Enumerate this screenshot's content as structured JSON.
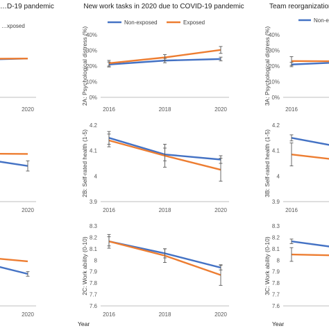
{
  "column_titles": [
    "…D-19 pandemic",
    "New work tasks in 2020 due to COVID-19 pandemic",
    "Team reorganization…"
  ],
  "year_label": "Year",
  "colors": {
    "non_exposed": "#4472c4",
    "exposed": "#ed7d31",
    "error_bar": "#595959",
    "axis": "#bfbfbf"
  },
  "chart_data": [
    {
      "id": "1A",
      "type": "line",
      "panel_label": "",
      "x": [
        2016,
        2018,
        2020
      ],
      "x_ticks_visible": [
        "2020"
      ],
      "series": [
        {
          "name": "Non-exposed",
          "values": [
            null,
            24.0,
            24.8
          ]
        },
        {
          "name": "Exposed",
          "values": [
            null,
            24.6,
            24.8
          ]
        }
      ],
      "legend_visible": [
        "…xposed"
      ]
    },
    {
      "id": "2A",
      "type": "line",
      "title": "New work tasks in 2020 due to COVID-19 pandemic",
      "ylabel": "2A: Psychological distress (%)",
      "ylim": [
        0,
        40
      ],
      "y_ticks": [
        "0%",
        "10%",
        "20%",
        "30%",
        "40%"
      ],
      "x": [
        2016,
        2018,
        2020
      ],
      "x_ticks": [
        "2016",
        "2018",
        "2020"
      ],
      "legend": [
        "Non-exposed",
        "Exposed"
      ],
      "legend_position": "top",
      "series": [
        {
          "name": "Non-exposed",
          "values": [
            21.0,
            23.5,
            24.5
          ],
          "err": [
            1.6,
            1.4,
            1.2
          ]
        },
        {
          "name": "Exposed",
          "values": [
            21.8,
            25.5,
            30.3
          ],
          "err": [
            1.8,
            1.8,
            2.2
          ]
        }
      ]
    },
    {
      "id": "3A",
      "type": "line",
      "title": "Team reorganization…",
      "ylabel": "3A: Psychological distress (%)",
      "ylim": [
        0,
        40
      ],
      "y_ticks": [
        "0%",
        "10%",
        "20%",
        "30%",
        "40%"
      ],
      "x": [
        2016,
        2018,
        2020
      ],
      "x_ticks_visible": [
        "2016"
      ],
      "legend_visible": [
        "Non-ex…"
      ],
      "series": [
        {
          "name": "Non-exposed",
          "values": [
            21.0,
            22.5,
            null
          ],
          "err": [
            1.4,
            null,
            null
          ]
        },
        {
          "name": "Exposed",
          "values": [
            23.2,
            23.0,
            null
          ],
          "err": [
            2.8,
            null,
            null
          ]
        }
      ]
    },
    {
      "id": "1B",
      "type": "line",
      "panel_label": "",
      "x": [
        2016,
        2018,
        2020
      ],
      "x_ticks_visible": [
        "2020"
      ],
      "series": [
        {
          "name": "Non-exposed",
          "values": [
            null,
            4.07,
            4.04
          ],
          "err": [
            null,
            null,
            0.02
          ]
        },
        {
          "name": "Exposed",
          "values": [
            null,
            4.088,
            4.087
          ]
        }
      ]
    },
    {
      "id": "2B",
      "type": "line",
      "ylabel": "2B: Self-rated health (1-5)",
      "ylim": [
        3.9,
        4.2
      ],
      "y_ticks": [
        "3.9",
        "4",
        "4.1",
        "4.2"
      ],
      "x": [
        2016,
        2018,
        2020
      ],
      "x_ticks": [
        "2016",
        "2018",
        "2020"
      ],
      "series": [
        {
          "name": "Non-exposed",
          "values": [
            4.15,
            4.085,
            4.065
          ],
          "err": [
            0.025,
            0.025,
            0.015
          ]
        },
        {
          "name": "Exposed",
          "values": [
            4.14,
            4.08,
            4.025
          ],
          "err": [
            0.025,
            0.045,
            0.045
          ]
        }
      ]
    },
    {
      "id": "3B",
      "type": "line",
      "ylabel": "3B: Self-rated health (1-5)",
      "ylim": [
        3.9,
        4.2
      ],
      "y_ticks": [
        "3.9",
        "4",
        "4.1",
        "4.2"
      ],
      "x": [
        2016,
        2018,
        2020
      ],
      "x_ticks_visible": [
        "2016"
      ],
      "series": [
        {
          "name": "Non-exposed",
          "values": [
            4.15,
            4.11,
            null
          ],
          "err": [
            0.012,
            null,
            null
          ]
        },
        {
          "name": "Exposed",
          "values": [
            4.085,
            4.06,
            null
          ],
          "err": [
            0.045,
            null,
            null
          ]
        }
      ]
    },
    {
      "id": "1C",
      "type": "line",
      "panel_label": "",
      "x": [
        2016,
        2018,
        2020
      ],
      "x_ticks_visible": [
        "2020"
      ],
      "series": [
        {
          "name": "Non-exposed",
          "values": [
            null,
            7.99,
            7.88
          ],
          "err": [
            null,
            null,
            0.02
          ]
        },
        {
          "name": "Exposed",
          "values": [
            null,
            8.03,
            7.99
          ]
        }
      ]
    },
    {
      "id": "2C",
      "type": "line",
      "ylabel": "2C: Work ability (0-10)",
      "ylim": [
        7.6,
        8.3
      ],
      "y_ticks": [
        "7.6",
        "7.7",
        "7.8",
        "7.9",
        "8",
        "8.1",
        "8.2",
        "8.3"
      ],
      "x": [
        2016,
        2018,
        2020
      ],
      "x_ticks": [
        "2016",
        "2018",
        "2020"
      ],
      "xlabel": "Year",
      "series": [
        {
          "name": "Non-exposed",
          "values": [
            8.165,
            8.06,
            7.935
          ],
          "err": [
            0.04,
            0.04,
            0.02
          ]
        },
        {
          "name": "Exposed",
          "values": [
            8.165,
            8.04,
            7.87
          ],
          "err": [
            0.06,
            0.06,
            0.09
          ]
        }
      ]
    },
    {
      "id": "3C",
      "type": "line",
      "ylabel": "3C: Work ability (0-10)",
      "ylim": [
        7.6,
        8.3
      ],
      "y_ticks": [
        "7.6",
        "7.7",
        "7.8",
        "7.9",
        "8",
        "8.1",
        "8.2",
        "8.3"
      ],
      "x": [
        2016,
        2018,
        2020
      ],
      "x_ticks_visible": [],
      "xlabel": "Year",
      "series": [
        {
          "name": "Non-exposed",
          "values": [
            8.165,
            8.1,
            null
          ],
          "err": [
            0.02,
            null,
            null
          ]
        },
        {
          "name": "Exposed",
          "values": [
            8.05,
            8.04,
            null
          ],
          "err": [
            0.06,
            null,
            null
          ]
        }
      ]
    }
  ]
}
